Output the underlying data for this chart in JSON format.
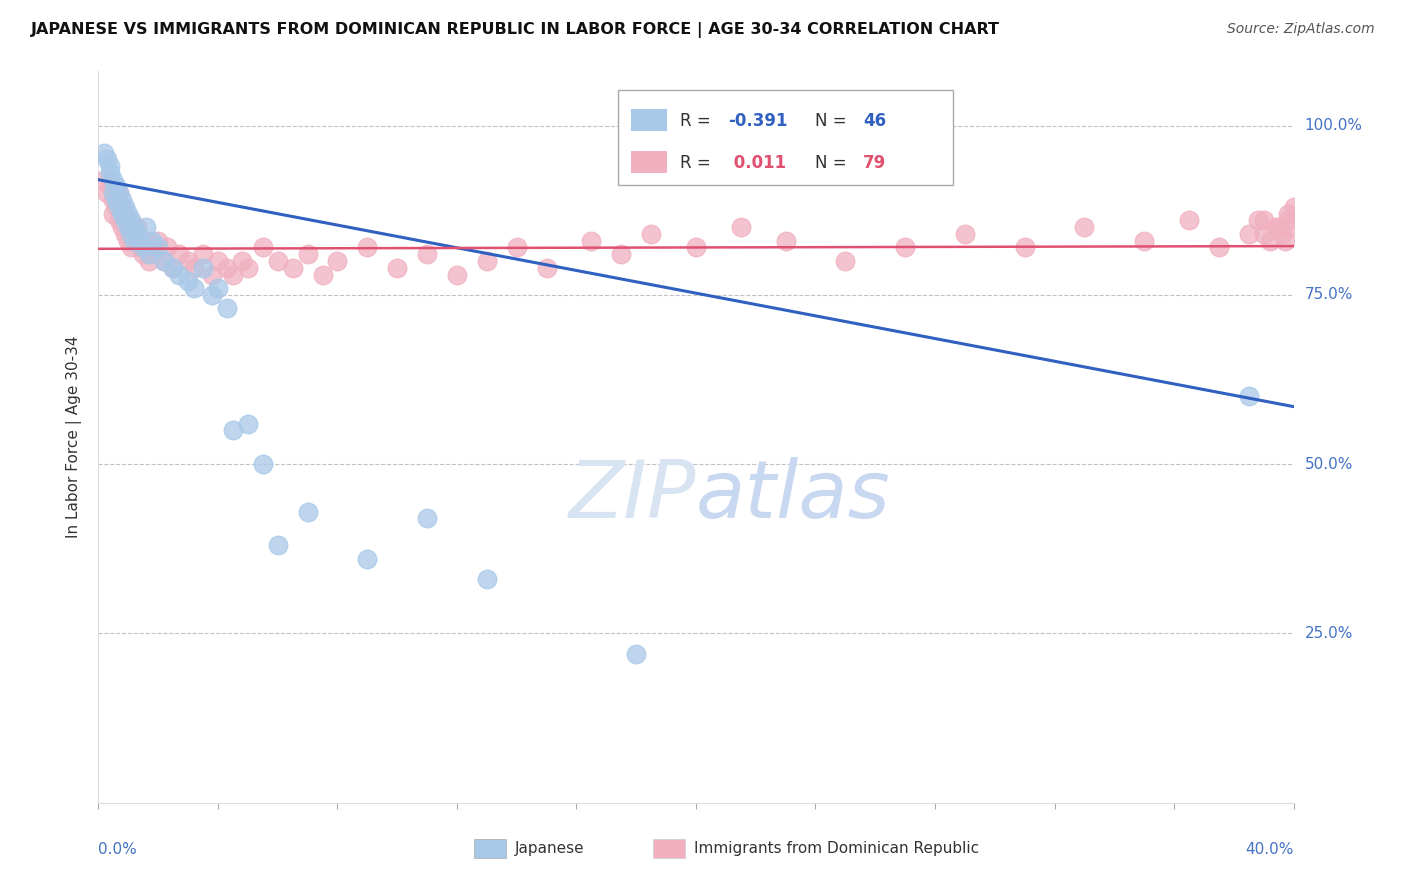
{
  "title": "JAPANESE VS IMMIGRANTS FROM DOMINICAN REPUBLIC IN LABOR FORCE | AGE 30-34 CORRELATION CHART",
  "source": "Source: ZipAtlas.com",
  "ylabel": "In Labor Force | Age 30-34",
  "legend_japanese": "Japanese",
  "legend_dr": "Immigrants from Dominican Republic",
  "R_japanese": "-0.391",
  "N_japanese": "46",
  "R_dr": "0.011",
  "N_dr": "79",
  "xlim": [
    0.0,
    0.4
  ],
  "ylim": [
    0.0,
    1.08
  ],
  "blue_color": "#A8C8E8",
  "pink_color": "#F0B0C0",
  "blue_line_color": "#3060C0",
  "pink_line_color": "#E05070",
  "watermark_color": "#D8E4F2",
  "jap_line_x0": 0.0,
  "jap_line_y0": 0.92,
  "jap_line_x1": 0.4,
  "jap_line_y1": 0.585,
  "dr_line_x0": 0.0,
  "dr_line_y0": 0.818,
  "dr_line_x1": 0.4,
  "dr_line_y1": 0.822,
  "japanese_x": [
    0.002,
    0.003,
    0.004,
    0.004,
    0.005,
    0.005,
    0.006,
    0.006,
    0.007,
    0.007,
    0.008,
    0.008,
    0.009,
    0.009,
    0.01,
    0.01,
    0.011,
    0.011,
    0.012,
    0.012,
    0.013,
    0.014,
    0.015,
    0.016,
    0.017,
    0.018,
    0.02,
    0.022,
    0.025,
    0.027,
    0.03,
    0.032,
    0.035,
    0.038,
    0.04,
    0.043,
    0.045,
    0.05,
    0.055,
    0.06,
    0.07,
    0.09,
    0.11,
    0.13,
    0.18,
    0.385
  ],
  "japanese_y": [
    0.96,
    0.95,
    0.94,
    0.93,
    0.92,
    0.9,
    0.91,
    0.89,
    0.88,
    0.9,
    0.87,
    0.89,
    0.86,
    0.88,
    0.85,
    0.87,
    0.84,
    0.86,
    0.85,
    0.83,
    0.84,
    0.83,
    0.82,
    0.85,
    0.81,
    0.83,
    0.82,
    0.8,
    0.79,
    0.78,
    0.77,
    0.76,
    0.79,
    0.75,
    0.76,
    0.73,
    0.55,
    0.56,
    0.5,
    0.38,
    0.43,
    0.36,
    0.42,
    0.33,
    0.22,
    0.6
  ],
  "dr_x": [
    0.002,
    0.003,
    0.004,
    0.005,
    0.005,
    0.006,
    0.007,
    0.007,
    0.008,
    0.008,
    0.009,
    0.009,
    0.01,
    0.01,
    0.011,
    0.011,
    0.012,
    0.013,
    0.013,
    0.014,
    0.015,
    0.016,
    0.017,
    0.018,
    0.019,
    0.02,
    0.022,
    0.023,
    0.025,
    0.027,
    0.03,
    0.032,
    0.035,
    0.038,
    0.04,
    0.043,
    0.045,
    0.048,
    0.05,
    0.055,
    0.06,
    0.065,
    0.07,
    0.075,
    0.08,
    0.09,
    0.1,
    0.11,
    0.12,
    0.13,
    0.14,
    0.15,
    0.165,
    0.175,
    0.185,
    0.2,
    0.215,
    0.23,
    0.25,
    0.27,
    0.29,
    0.31,
    0.33,
    0.35,
    0.365,
    0.375,
    0.385,
    0.39,
    0.395,
    0.397,
    0.398,
    0.399,
    0.4,
    0.398,
    0.396,
    0.394,
    0.392,
    0.39,
    0.388
  ],
  "dr_y": [
    0.92,
    0.9,
    0.91,
    0.89,
    0.87,
    0.88,
    0.86,
    0.9,
    0.88,
    0.85,
    0.87,
    0.84,
    0.86,
    0.83,
    0.85,
    0.82,
    0.84,
    0.83,
    0.85,
    0.82,
    0.81,
    0.83,
    0.8,
    0.82,
    0.81,
    0.83,
    0.8,
    0.82,
    0.79,
    0.81,
    0.8,
    0.79,
    0.81,
    0.78,
    0.8,
    0.79,
    0.78,
    0.8,
    0.79,
    0.82,
    0.8,
    0.79,
    0.81,
    0.78,
    0.8,
    0.82,
    0.79,
    0.81,
    0.78,
    0.8,
    0.82,
    0.79,
    0.83,
    0.81,
    0.84,
    0.82,
    0.85,
    0.83,
    0.8,
    0.82,
    0.84,
    0.82,
    0.85,
    0.83,
    0.86,
    0.82,
    0.84,
    0.86,
    0.85,
    0.83,
    0.87,
    0.85,
    0.88,
    0.86,
    0.84,
    0.85,
    0.83,
    0.84,
    0.86
  ]
}
